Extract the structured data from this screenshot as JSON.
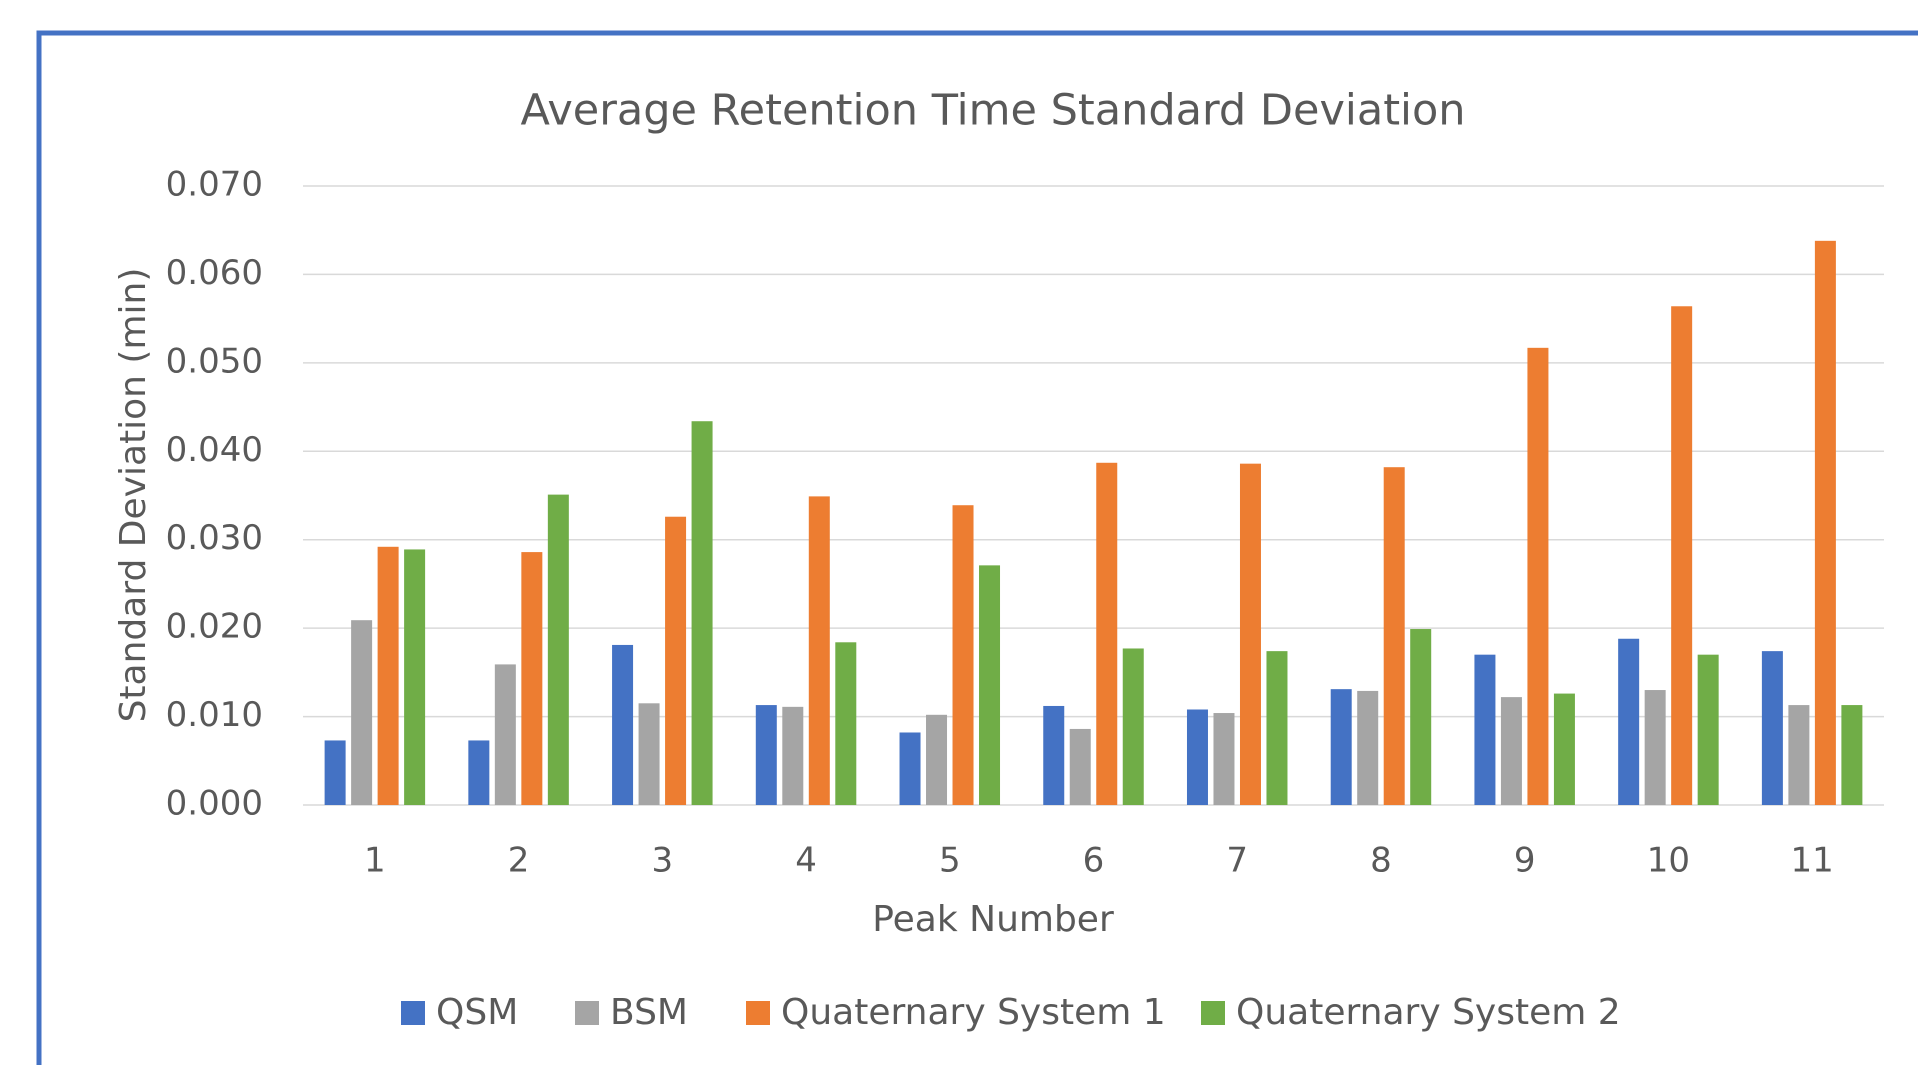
{
  "chart_data": {
    "type": "bar",
    "title": "Average Retention Time Standard Deviation",
    "x_label": "Peak Number",
    "y_label": "Standard Deviation (min)",
    "categories": [
      "1",
      "2",
      "3",
      "4",
      "5",
      "6",
      "7",
      "8",
      "9",
      "10",
      "11"
    ],
    "series": [
      {
        "name": "QSM",
        "color": "#4472c4",
        "values": [
          0.0073,
          0.0073,
          0.0181,
          0.0113,
          0.0082,
          0.0112,
          0.0108,
          0.0131,
          0.017,
          0.0188,
          0.0174
        ]
      },
      {
        "name": "BSM",
        "color": "#a5a5a5",
        "values": [
          0.0209,
          0.0159,
          0.0115,
          0.0111,
          0.0102,
          0.0086,
          0.0104,
          0.0129,
          0.0122,
          0.013,
          0.0113
        ]
      },
      {
        "name": "Quaternary System 1",
        "color": "#ed7d31",
        "values": [
          0.0292,
          0.0286,
          0.0326,
          0.0349,
          0.0339,
          0.0387,
          0.0386,
          0.0382,
          0.0517,
          0.0564,
          0.0638
        ]
      },
      {
        "name": "Quaternary System 2",
        "color": "#70ad47",
        "values": [
          0.0289,
          0.0351,
          0.0434,
          0.0184,
          0.0271,
          0.0177,
          0.0174,
          0.0199,
          0.0126,
          0.017,
          0.0113
        ]
      }
    ],
    "ylim": [
      0,
      0.07
    ],
    "yticks": [
      {
        "value": 0,
        "label": "0.000"
      },
      {
        "value": 0.01,
        "label": "0.010"
      },
      {
        "value": 0.02,
        "label": "0.020"
      },
      {
        "value": 0.03,
        "label": "0.030"
      },
      {
        "value": 0.04,
        "label": "0.040"
      },
      {
        "value": 0.05,
        "label": "0.050"
      },
      {
        "value": 0.06,
        "label": "0.060"
      },
      {
        "value": 0.07,
        "label": "0.070"
      }
    ],
    "grid": true,
    "legend": "bottom"
  }
}
